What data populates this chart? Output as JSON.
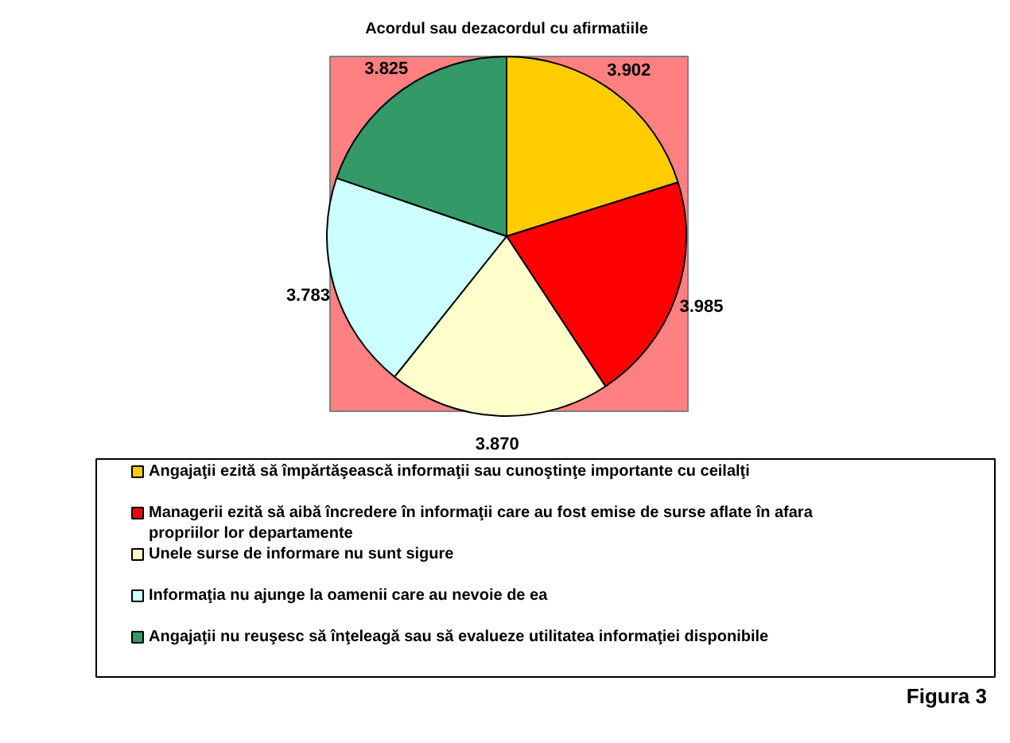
{
  "chart_data": {
    "type": "pie",
    "title": "Acordul sau dezacordul cu afirmatiile",
    "categories": [
      "Angajaţii ezită să împărtăşească informaţii sau cunoştinţe importante cu ceilalţi",
      "Managerii ezită să aibă încredere în informaţii care au fost emise de surse aflate în afara propriilor lor departamente",
      "Unele surse de informare nu sunt sigure",
      "Informaţia nu ajunge la oamenii care au nevoie de ea",
      "Angajaţii nu reuşesc să înţeleagă sau să evalueze utilitatea informaţiei disponibile"
    ],
    "values": [
      3.902,
      3.985,
      3.87,
      3.783,
      3.825
    ],
    "value_labels": [
      "3.902",
      "3.985",
      "3.870",
      "3.783",
      "3.825"
    ],
    "colors": [
      "#ffcc00",
      "#ff0000",
      "#ffffcc",
      "#ccffff",
      "#339966"
    ],
    "legend": "bottom",
    "annotations": [
      "Figura 3"
    ]
  }
}
